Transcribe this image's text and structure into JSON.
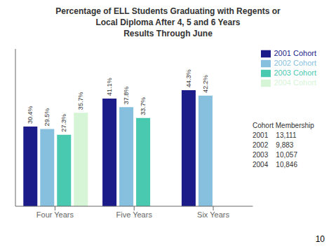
{
  "chart_data": {
    "type": "bar",
    "title": "Percentage of ELL Students Graduating with Regents or\nLocal Diploma After 4, 5 and 6 Years\nResults Through June",
    "categories": [
      "Four Years",
      "Five Years",
      "Six Years"
    ],
    "series": [
      {
        "name": "2001 Cohort",
        "color": "#1B1B8A",
        "values": [
          30.4,
          41.1,
          44.3
        ],
        "value_labels": [
          "30.4%",
          "41.1%",
          "44.3%"
        ]
      },
      {
        "name": "2002 Cohort",
        "color": "#87BFDE",
        "values": [
          29.5,
          37.8,
          42.2
        ],
        "value_labels": [
          "29.5%",
          "37.8%",
          "42.2%"
        ]
      },
      {
        "name": "2003 Cohort",
        "color": "#48C9B0",
        "values": [
          27.3,
          33.7,
          null
        ],
        "value_labels": [
          "27.3%",
          "33.7%",
          null
        ]
      },
      {
        "name": "2004 Cohort",
        "color": "#D6F5D6",
        "values": [
          35.7,
          null,
          null
        ],
        "value_labels": [
          "35.7%",
          null,
          null
        ]
      }
    ],
    "ylim": [
      0,
      60
    ],
    "tick_labels": "x",
    "grid": false,
    "legend": "upper right",
    "data_labels": true,
    "annotations": [
      "Cohort Membership",
      "2001    13,111",
      "2002    9,883",
      "2003    10,057",
      "2004    10,846",
      "10"
    ]
  }
}
